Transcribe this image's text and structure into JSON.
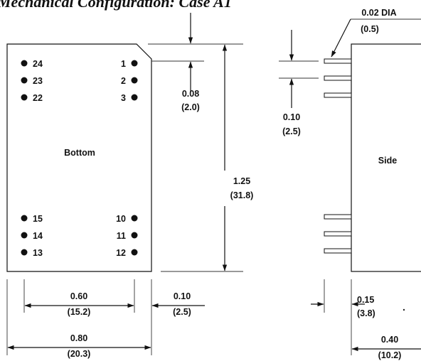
{
  "title": "Mechanical Configuration: Case A1",
  "bottom_view": {
    "label": "Bottom",
    "pins_left": [
      "24",
      "23",
      "22",
      "15",
      "14",
      "13"
    ],
    "pins_right": [
      "1",
      "2",
      "3",
      "10",
      "11",
      "12"
    ]
  },
  "side_view": {
    "label": "Side"
  },
  "dimensions": {
    "pin_dia": {
      "in": "0.02 DIA",
      "mm": "(0.5)"
    },
    "corner_chamfer": {
      "in": "0.08",
      "mm": "(2.0)"
    },
    "pin_pitch": {
      "in": "0.10",
      "mm": "(2.5)"
    },
    "length": {
      "in": "1.25",
      "mm": "(31.8)"
    },
    "pin_row_spacing": {
      "in": "0.60",
      "mm": "(15.2)"
    },
    "edge_to_pin": {
      "in": "0.10",
      "mm": "(2.5)"
    },
    "width": {
      "in": "0.80",
      "mm": "(20.3)"
    },
    "pin_length": {
      "in": "0.15",
      "mm": "(3.8)"
    },
    "height": {
      "in": "0.40",
      "mm": "(10.2)"
    }
  }
}
